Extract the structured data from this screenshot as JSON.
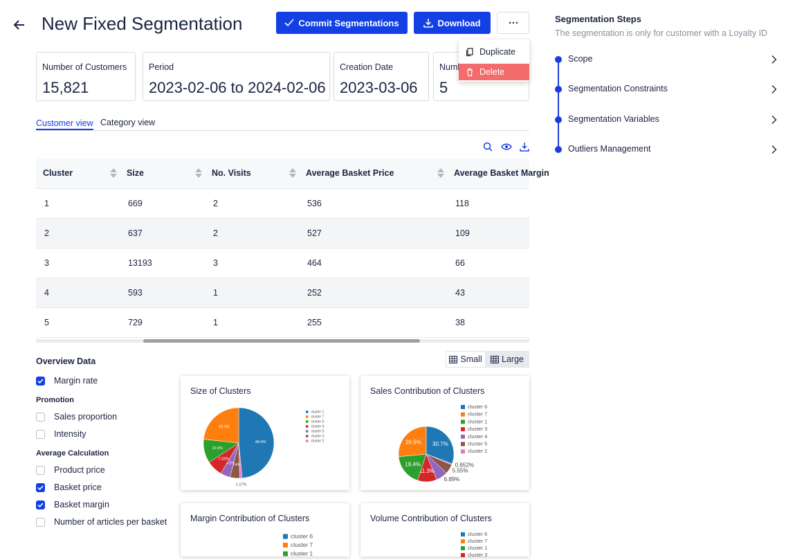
{
  "header": {
    "title": "New Fixed Segmentation",
    "actions": [
      "Commit Segmentations",
      "Download"
    ],
    "menu": [
      "Duplicate",
      "Delete"
    ]
  },
  "stats": [
    {
      "label": "Number of Customers",
      "value": "15,821"
    },
    {
      "label": "Period",
      "value": "2023-02-06 to 2024-02-06"
    },
    {
      "label": "Creation Date",
      "value": "2023-03-06"
    },
    {
      "label": "Number of Clusters",
      "value": "5"
    }
  ],
  "tabs": [
    "Customer view",
    "Category view"
  ],
  "table": {
    "columns": [
      "Cluster",
      "Size",
      "No. Visits",
      "Average Basket Price",
      "Average Basket Margin"
    ],
    "rows": [
      [
        1,
        669,
        2,
        536,
        118
      ],
      [
        2,
        637,
        2,
        527,
        109
      ],
      [
        3,
        13193,
        3,
        464,
        66
      ],
      [
        4,
        593,
        1,
        252,
        43
      ],
      [
        5,
        729,
        1,
        255,
        38
      ]
    ]
  },
  "overview": {
    "title": "Overview Data",
    "items": [
      {
        "label": "Margin rate",
        "checked": true
      }
    ],
    "groups": [
      {
        "title": "Promotion",
        "items": [
          {
            "label": "Sales proportion",
            "checked": false
          },
          {
            "label": "Intensity",
            "checked": false
          }
        ]
      },
      {
        "title": "Average Calculation",
        "items": [
          {
            "label": "Product price",
            "checked": false
          },
          {
            "label": "Basket price",
            "checked": true
          },
          {
            "label": "Basket margin",
            "checked": true
          },
          {
            "label": "Number of articles per basket",
            "checked": false
          }
        ]
      }
    ]
  },
  "view_size": {
    "options": [
      "Small",
      "Large"
    ],
    "selected": 1
  },
  "chart_data": [
    {
      "type": "pie",
      "title": "Size of Clusters",
      "categories": [
        "cluster 1",
        "cluster 7",
        "cluster 6",
        "cluster 4",
        "cluster 5",
        "cluster 3",
        "cluster 2"
      ],
      "values": [
        48.4,
        23.3,
        10.9,
        7.33,
        4.5,
        4.4,
        1.17
      ],
      "value_labels": [
        "48.4%",
        "23.3%",
        "10.9%",
        "7.33%",
        "4.5%",
        "4.4%",
        "1.17%"
      ],
      "colors": [
        "#1f77b4",
        "#ff7f0e",
        "#2ca02c",
        "#d62728",
        "#9467bd",
        "#8c564b",
        "#e377c2"
      ]
    },
    {
      "type": "pie",
      "title": "Sales Contribution of Clusters",
      "categories": [
        "cluster 6",
        "cluster 7",
        "cluster 1",
        "cluster 3",
        "cluster 4",
        "cluster 5",
        "cluster 2"
      ],
      "values": [
        30.7,
        26.5,
        18.4,
        11.3,
        6.89,
        5.55,
        0.652
      ],
      "value_labels": [
        "30.7%",
        "26.5%",
        "18.4%",
        "11.3%",
        "6.89%",
        "5.55%",
        "0.652%"
      ],
      "colors": [
        "#1f77b4",
        "#ff7f0e",
        "#2ca02c",
        "#d62728",
        "#9467bd",
        "#8c564b",
        "#e377c2"
      ]
    },
    {
      "type": "pie",
      "title": "Margin Contribution of Clusters",
      "categories": [
        "cluster 6",
        "cluster 7",
        "cluster 1"
      ],
      "colors": [
        "#1f77b4",
        "#ff7f0e",
        "#2ca02c"
      ]
    },
    {
      "type": "pie",
      "title": "Volume Contribution of Clusters",
      "categories": [
        "cluster 6",
        "cluster 7",
        "cluster 1",
        "cluster 3"
      ],
      "colors": [
        "#1f77b4",
        "#ff7f0e",
        "#2ca02c",
        "#d62728"
      ]
    }
  ],
  "steps": {
    "title": "Segmentation Steps",
    "subtitle": "The segmentation is only for customer with a Loyalty ID",
    "items": [
      "Scope",
      "Segmentation Constraints",
      "Segmentation Variables",
      "Outliers Management"
    ]
  }
}
